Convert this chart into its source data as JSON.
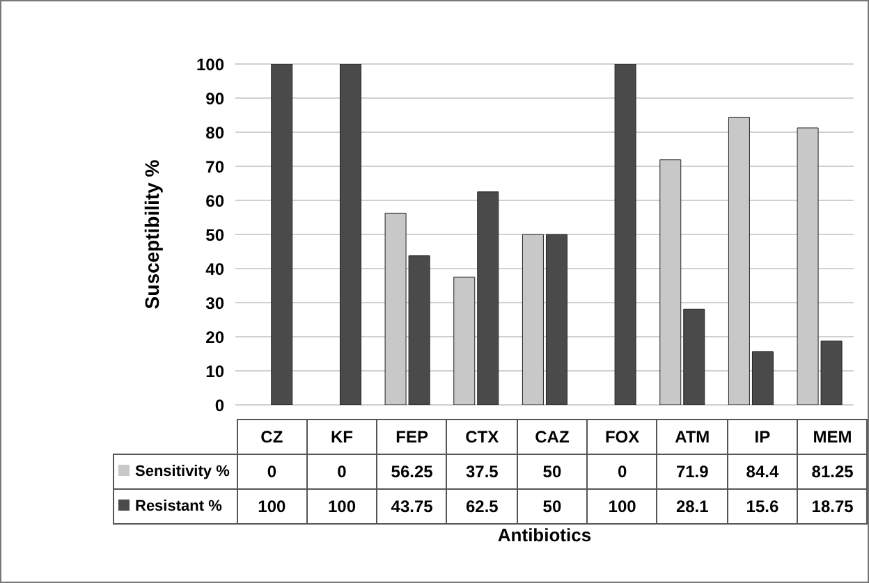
{
  "chart_data": {
    "type": "bar",
    "xlabel": "Antibiotics",
    "ylabel": "Susceptibility %",
    "categories": [
      "CZ",
      "KF",
      "FEP",
      "CTX",
      "CAZ",
      "FOX",
      "ATM",
      "IP",
      "MEM"
    ],
    "series": [
      {
        "name": "Sensitivity %",
        "color": "#c8c8c8",
        "values": [
          0,
          0,
          56.25,
          37.5,
          50,
          0,
          71.9,
          84.4,
          81.25
        ]
      },
      {
        "name": "Resistant %",
        "color": "#4a4a4a",
        "values": [
          100,
          100,
          43.75,
          62.5,
          50,
          100,
          28.1,
          15.6,
          18.75
        ]
      }
    ],
    "ylim": [
      0,
      100
    ],
    "yticks": [
      0,
      10,
      20,
      30,
      40,
      50,
      60,
      70,
      80,
      90,
      100
    ],
    "grid": "y",
    "legend": "bottom",
    "data_labels": true
  }
}
